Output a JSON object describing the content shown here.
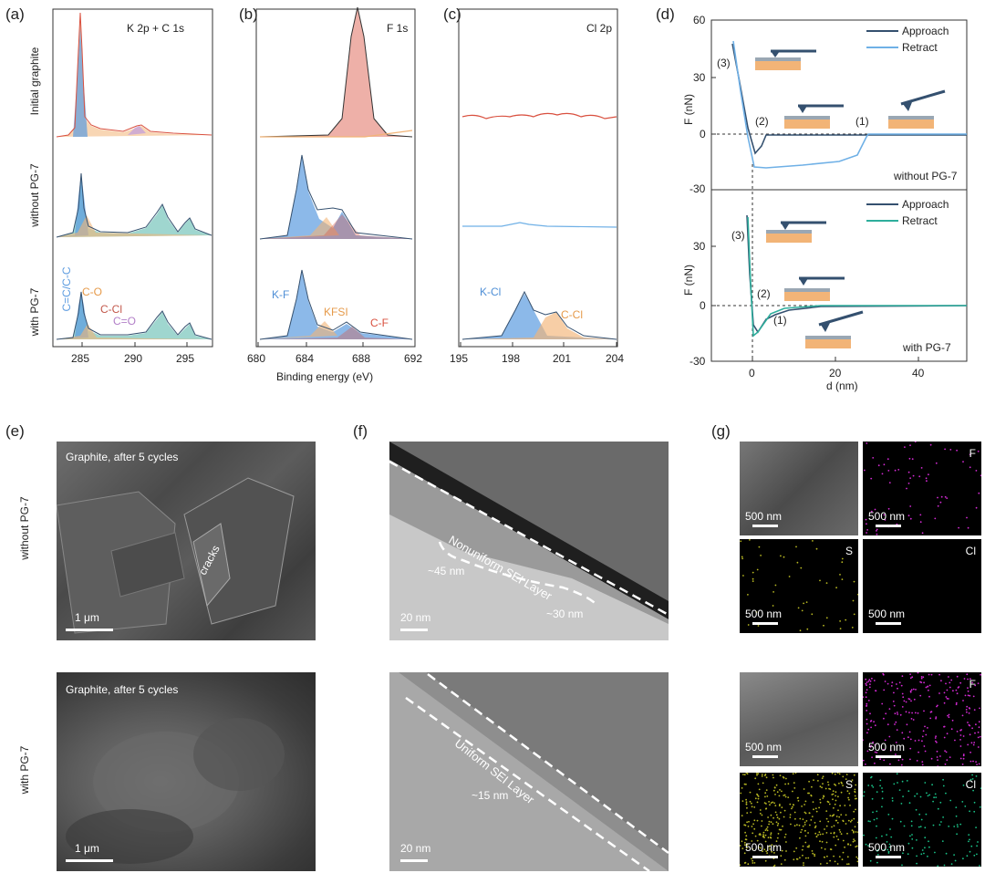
{
  "panel_letters": {
    "a": "(a)",
    "b": "(b)",
    "c": "(c)",
    "d": "(d)",
    "e": "(e)",
    "f": "(f)",
    "g": "(g)"
  },
  "panel_a": {
    "title": "K 2p + C 1s",
    "row_labels": [
      "Initial graphite",
      "without PG-7",
      "with PG-7"
    ],
    "x_ticks": [
      "285",
      "290",
      "295"
    ],
    "peak_labels": {
      "c_c": "C=C/C-C",
      "c_o": "C-O",
      "c_cl": "C-Cl",
      "c_eq_o": "C=O"
    }
  },
  "panel_b": {
    "title": "F 1s",
    "x_ticks": [
      "680",
      "684",
      "688",
      "692"
    ],
    "peak_labels": {
      "kf": "K-F",
      "kfsi": "KFSI",
      "cf": "C-F"
    },
    "xlabel": "Binding energy (eV)"
  },
  "panel_c": {
    "title": "Cl 2p",
    "x_ticks": [
      "195",
      "198",
      "201",
      "204"
    ],
    "peak_labels": {
      "kcl": "K-Cl",
      "ccl": "C-Cl"
    }
  },
  "panel_d": {
    "ylabel": "F (nN)",
    "xlabel": "d (nm)",
    "top": {
      "y_ticks": [
        "60",
        "30",
        "0",
        "-30"
      ],
      "legend": [
        "Approach",
        "Retract"
      ],
      "note": "without PG-7",
      "markers": [
        "(3)",
        "(2)",
        "(1)"
      ]
    },
    "bottom": {
      "y_ticks": [
        "30",
        "0",
        "-30"
      ],
      "legend": [
        "Approach",
        "Retract"
      ],
      "note": "with PG-7",
      "markers": [
        "(3)",
        "(2)",
        "(1)"
      ]
    },
    "x_ticks": [
      "0",
      "20",
      "40"
    ]
  },
  "panel_e": {
    "row_labels": [
      "without PG-7",
      "with PG-7"
    ],
    "top_caption": "Graphite, after 5 cycles",
    "bottom_caption": "Graphite, after 5 cycles",
    "cracks_label": "cracks",
    "scale_top": "1 μm",
    "scale_bottom": "1 μm"
  },
  "panel_f": {
    "top_label": "Nonuniform SEI Layer",
    "top_thick1": "~45 nm",
    "top_thick2": "~30 nm",
    "top_scale": "20 nm",
    "bottom_label": "Uniform SEI Layer",
    "bottom_thick": "~15 nm",
    "bottom_scale": "20 nm"
  },
  "panel_g": {
    "scale": "500 nm",
    "elements": {
      "f": "F",
      "s": "S",
      "cl": "Cl"
    }
  },
  "colors": {
    "blue_fill": "#5b9be0",
    "orange_fill": "#f2b477",
    "red_line": "#d9503f",
    "teal_fill": "#3fae9f",
    "purple_fill": "#c7a3d8",
    "navy": "#34506f",
    "light_blue": "#6fb0e6",
    "teal_line": "#2eae9c"
  }
}
